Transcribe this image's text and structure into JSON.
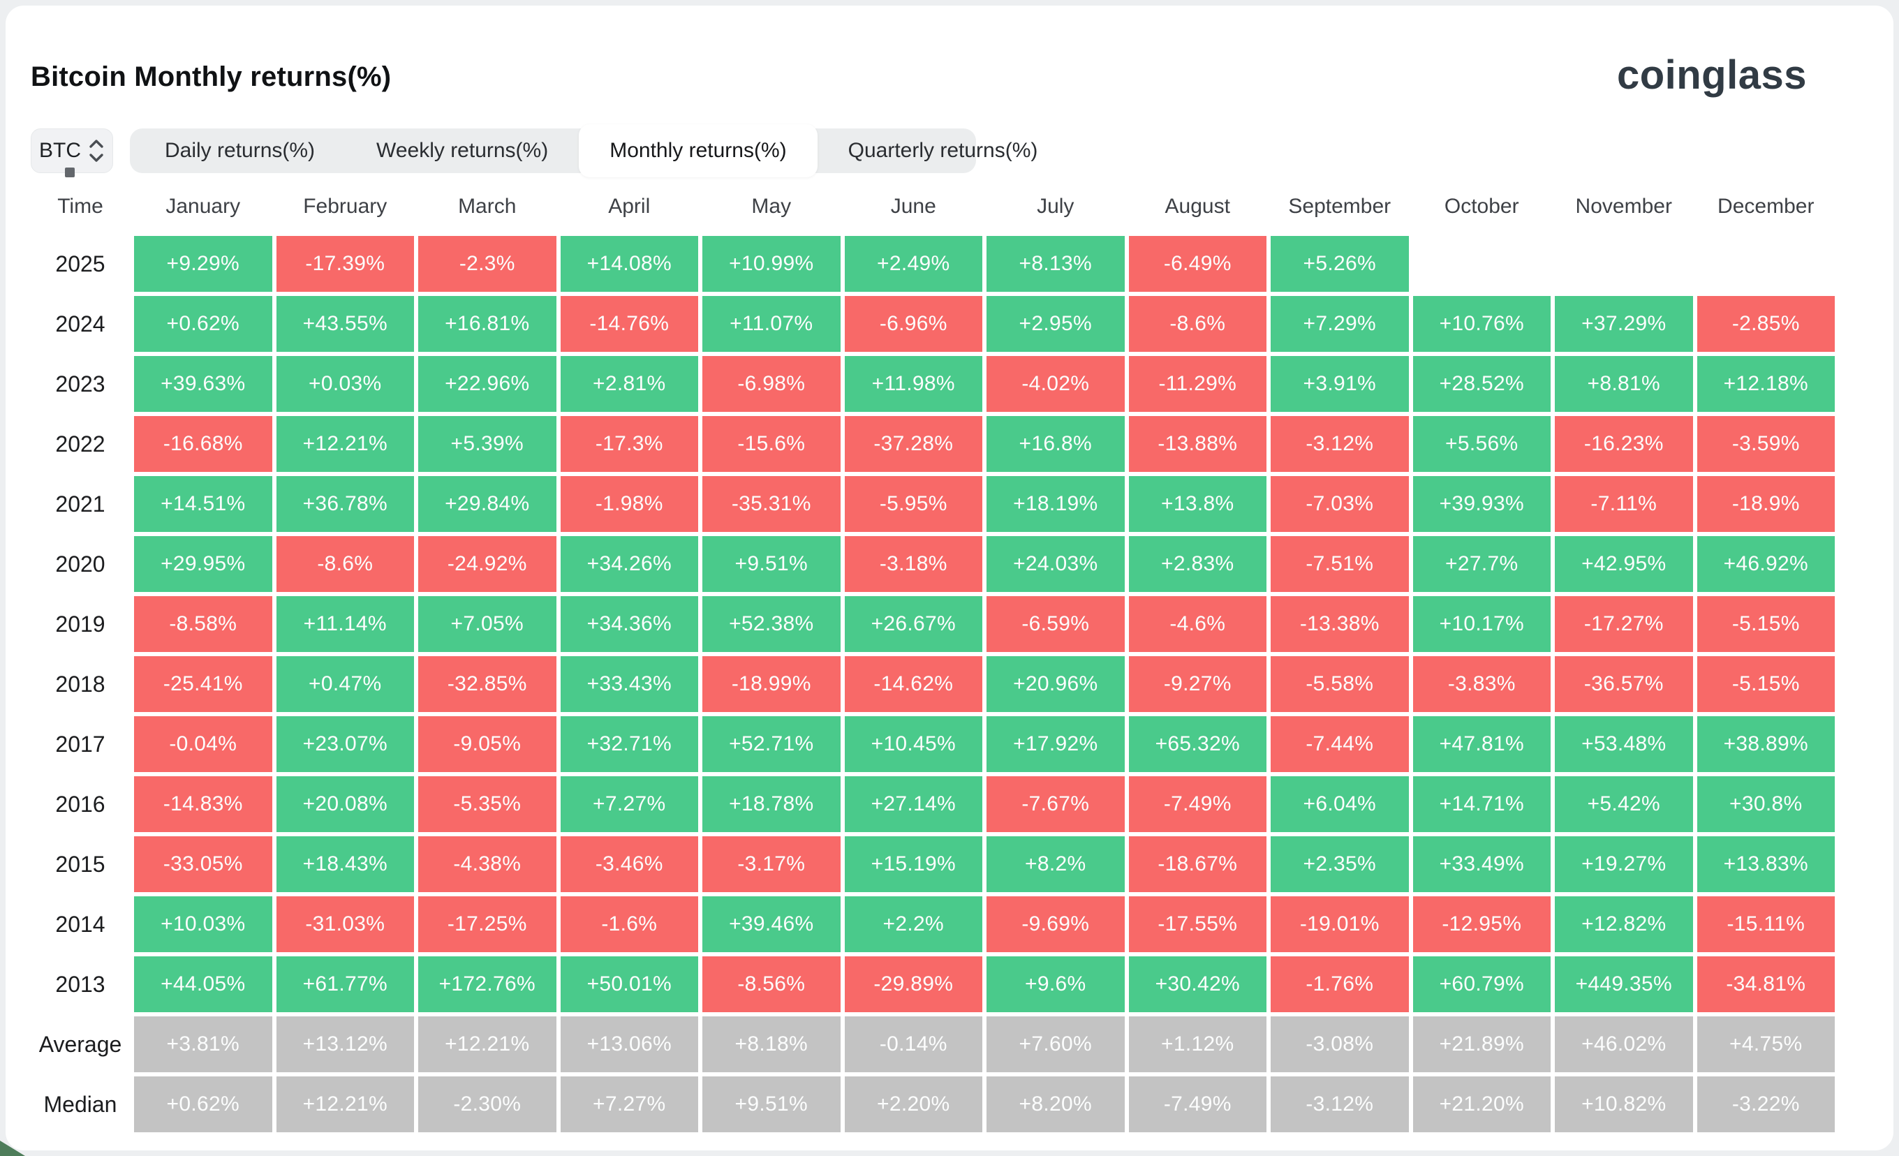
{
  "page": {
    "title": "Bitcoin Monthly returns(%)",
    "logo": "coinglass"
  },
  "controls": {
    "symbol": "BTC",
    "tabs": [
      {
        "label": "Daily returns(%)",
        "active": false
      },
      {
        "label": "Weekly returns(%)",
        "active": false
      },
      {
        "label": "Monthly returns(%)",
        "active": true
      },
      {
        "label": "Quarterly returns(%)",
        "active": false
      }
    ]
  },
  "colors": {
    "positive": "#4aca8b",
    "negative": "#f86968",
    "summary": "#c3c3c3"
  },
  "table": {
    "corner_label": "Time",
    "months": [
      "January",
      "February",
      "March",
      "April",
      "May",
      "June",
      "July",
      "August",
      "September",
      "October",
      "November",
      "December"
    ],
    "rows": [
      {
        "label": "2025",
        "type": "year",
        "values": [
          "+9.29%",
          "-17.39%",
          "-2.3%",
          "+14.08%",
          "+10.99%",
          "+2.49%",
          "+8.13%",
          "-6.49%",
          "+5.26%",
          "",
          "",
          ""
        ]
      },
      {
        "label": "2024",
        "type": "year",
        "values": [
          "+0.62%",
          "+43.55%",
          "+16.81%",
          "-14.76%",
          "+11.07%",
          "-6.96%",
          "+2.95%",
          "-8.6%",
          "+7.29%",
          "+10.76%",
          "+37.29%",
          "-2.85%"
        ]
      },
      {
        "label": "2023",
        "type": "year",
        "values": [
          "+39.63%",
          "+0.03%",
          "+22.96%",
          "+2.81%",
          "-6.98%",
          "+11.98%",
          "-4.02%",
          "-11.29%",
          "+3.91%",
          "+28.52%",
          "+8.81%",
          "+12.18%"
        ]
      },
      {
        "label": "2022",
        "type": "year",
        "values": [
          "-16.68%",
          "+12.21%",
          "+5.39%",
          "-17.3%",
          "-15.6%",
          "-37.28%",
          "+16.8%",
          "-13.88%",
          "-3.12%",
          "+5.56%",
          "-16.23%",
          "-3.59%"
        ]
      },
      {
        "label": "2021",
        "type": "year",
        "values": [
          "+14.51%",
          "+36.78%",
          "+29.84%",
          "-1.98%",
          "-35.31%",
          "-5.95%",
          "+18.19%",
          "+13.8%",
          "-7.03%",
          "+39.93%",
          "-7.11%",
          "-18.9%"
        ]
      },
      {
        "label": "2020",
        "type": "year",
        "values": [
          "+29.95%",
          "-8.6%",
          "-24.92%",
          "+34.26%",
          "+9.51%",
          "-3.18%",
          "+24.03%",
          "+2.83%",
          "-7.51%",
          "+27.7%",
          "+42.95%",
          "+46.92%"
        ]
      },
      {
        "label": "2019",
        "type": "year",
        "values": [
          "-8.58%",
          "+11.14%",
          "+7.05%",
          "+34.36%",
          "+52.38%",
          "+26.67%",
          "-6.59%",
          "-4.6%",
          "-13.38%",
          "+10.17%",
          "-17.27%",
          "-5.15%"
        ]
      },
      {
        "label": "2018",
        "type": "year",
        "values": [
          "-25.41%",
          "+0.47%",
          "-32.85%",
          "+33.43%",
          "-18.99%",
          "-14.62%",
          "+20.96%",
          "-9.27%",
          "-5.58%",
          "-3.83%",
          "-36.57%",
          "-5.15%"
        ]
      },
      {
        "label": "2017",
        "type": "year",
        "values": [
          "-0.04%",
          "+23.07%",
          "-9.05%",
          "+32.71%",
          "+52.71%",
          "+10.45%",
          "+17.92%",
          "+65.32%",
          "-7.44%",
          "+47.81%",
          "+53.48%",
          "+38.89%"
        ]
      },
      {
        "label": "2016",
        "type": "year",
        "values": [
          "-14.83%",
          "+20.08%",
          "-5.35%",
          "+7.27%",
          "+18.78%",
          "+27.14%",
          "-7.67%",
          "-7.49%",
          "+6.04%",
          "+14.71%",
          "+5.42%",
          "+30.8%"
        ]
      },
      {
        "label": "2015",
        "type": "year",
        "values": [
          "-33.05%",
          "+18.43%",
          "-4.38%",
          "-3.46%",
          "-3.17%",
          "+15.19%",
          "+8.2%",
          "-18.67%",
          "+2.35%",
          "+33.49%",
          "+19.27%",
          "+13.83%"
        ]
      },
      {
        "label": "2014",
        "type": "year",
        "values": [
          "+10.03%",
          "-31.03%",
          "-17.25%",
          "-1.6%",
          "+39.46%",
          "+2.2%",
          "-9.69%",
          "-17.55%",
          "-19.01%",
          "-12.95%",
          "+12.82%",
          "-15.11%"
        ]
      },
      {
        "label": "2013",
        "type": "year",
        "values": [
          "+44.05%",
          "+61.77%",
          "+172.76%",
          "+50.01%",
          "-8.56%",
          "-29.89%",
          "+9.6%",
          "+30.42%",
          "-1.76%",
          "+60.79%",
          "+449.35%",
          "-34.81%"
        ]
      },
      {
        "label": "Average",
        "type": "summary",
        "values": [
          "+3.81%",
          "+13.12%",
          "+12.21%",
          "+13.06%",
          "+8.18%",
          "-0.14%",
          "+7.60%",
          "+1.12%",
          "-3.08%",
          "+21.89%",
          "+46.02%",
          "+4.75%"
        ]
      },
      {
        "label": "Median",
        "type": "summary",
        "values": [
          "+0.62%",
          "+12.21%",
          "-2.30%",
          "+7.27%",
          "+9.51%",
          "+2.20%",
          "+8.20%",
          "-7.49%",
          "-3.12%",
          "+21.20%",
          "+10.82%",
          "-3.22%"
        ]
      }
    ]
  }
}
